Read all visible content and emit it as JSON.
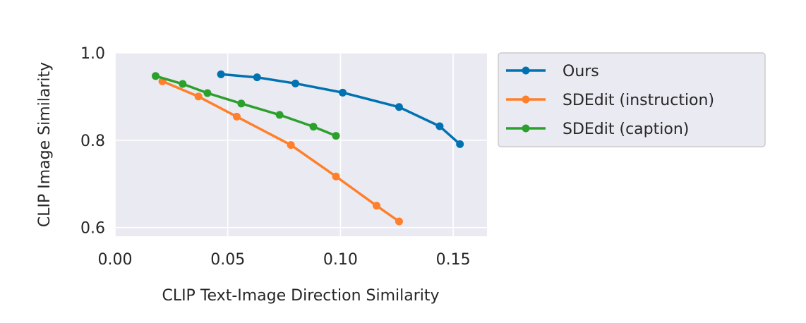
{
  "chart_data": {
    "type": "line",
    "xlabel": "CLIP Text-Image Direction Similarity",
    "ylabel": "CLIP Image Similarity",
    "xlim": [
      0.0,
      0.165
    ],
    "ylim": [
      0.58,
      1.0
    ],
    "xticks": [
      "0.00",
      "0.05",
      "0.10",
      "0.15"
    ],
    "xtick_values": [
      0.0,
      0.05,
      0.1,
      0.15
    ],
    "yticks": [
      "0.6",
      "0.8",
      "1.0"
    ],
    "ytick_values": [
      0.6,
      0.8,
      1.0
    ],
    "grid": true,
    "legend_position": "outside-right",
    "series": [
      {
        "name": "Ours",
        "color": "#0072b2",
        "x": [
          0.047,
          0.063,
          0.08,
          0.101,
          0.126,
          0.144,
          0.153
        ],
        "y": [
          0.951,
          0.944,
          0.93,
          0.909,
          0.876,
          0.832,
          0.791
        ]
      },
      {
        "name": "SDEdit (instruction)",
        "color": "#ff7f2a",
        "x": [
          0.021,
          0.037,
          0.054,
          0.078,
          0.098,
          0.116,
          0.126
        ],
        "y": [
          0.935,
          0.9,
          0.854,
          0.789,
          0.717,
          0.65,
          0.614
        ]
      },
      {
        "name": "SDEdit (caption)",
        "color": "#2ca02c",
        "x": [
          0.018,
          0.03,
          0.041,
          0.056,
          0.073,
          0.088,
          0.098
        ],
        "y": [
          0.947,
          0.929,
          0.908,
          0.884,
          0.858,
          0.831,
          0.81
        ]
      }
    ]
  }
}
